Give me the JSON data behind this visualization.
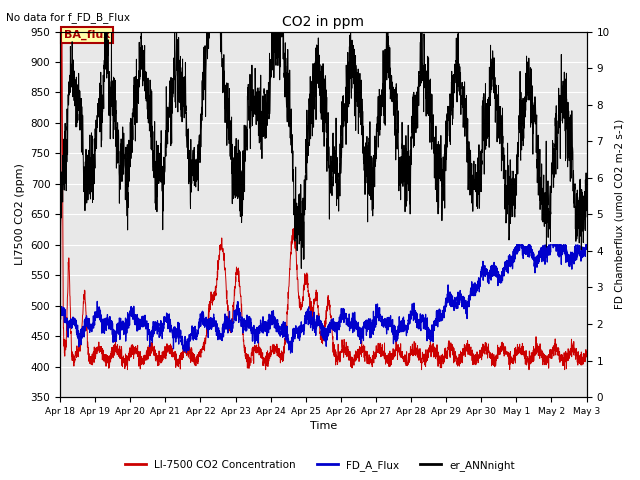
{
  "title": "CO2 in ppm",
  "top_left_text": "No data for f_FD_B_Flux",
  "xlabel": "Time",
  "ylabel_left": "LI7500 CO2 (ppm)",
  "ylabel_right": "FD Chamberflux (umol CO2 m-2 s-1)",
  "ylim_left": [
    350,
    950
  ],
  "ylim_right": [
    0.0,
    10.0
  ],
  "xtick_labels": [
    "Apr 18",
    "Apr 19",
    "Apr 20",
    "Apr 21",
    "Apr 22",
    "Apr 23",
    "Apr 24",
    "Apr 25",
    "Apr 26",
    "Apr 27",
    "Apr 28",
    "Apr 29",
    "Apr 30",
    "May 1",
    "May 2",
    "May 3"
  ],
  "legend_labels": [
    "LI-7500 CO2 Concentration",
    "FD_A_Flux",
    "er_ANNnight"
  ],
  "legend_colors": [
    "#cc0000",
    "#0000cc",
    "#000000"
  ],
  "annotation_text": "BA_flux",
  "annotation_color": "#aa0000",
  "annotation_bg": "#ffffaa",
  "background_color": "#e8e8e8",
  "n_points": 3000
}
